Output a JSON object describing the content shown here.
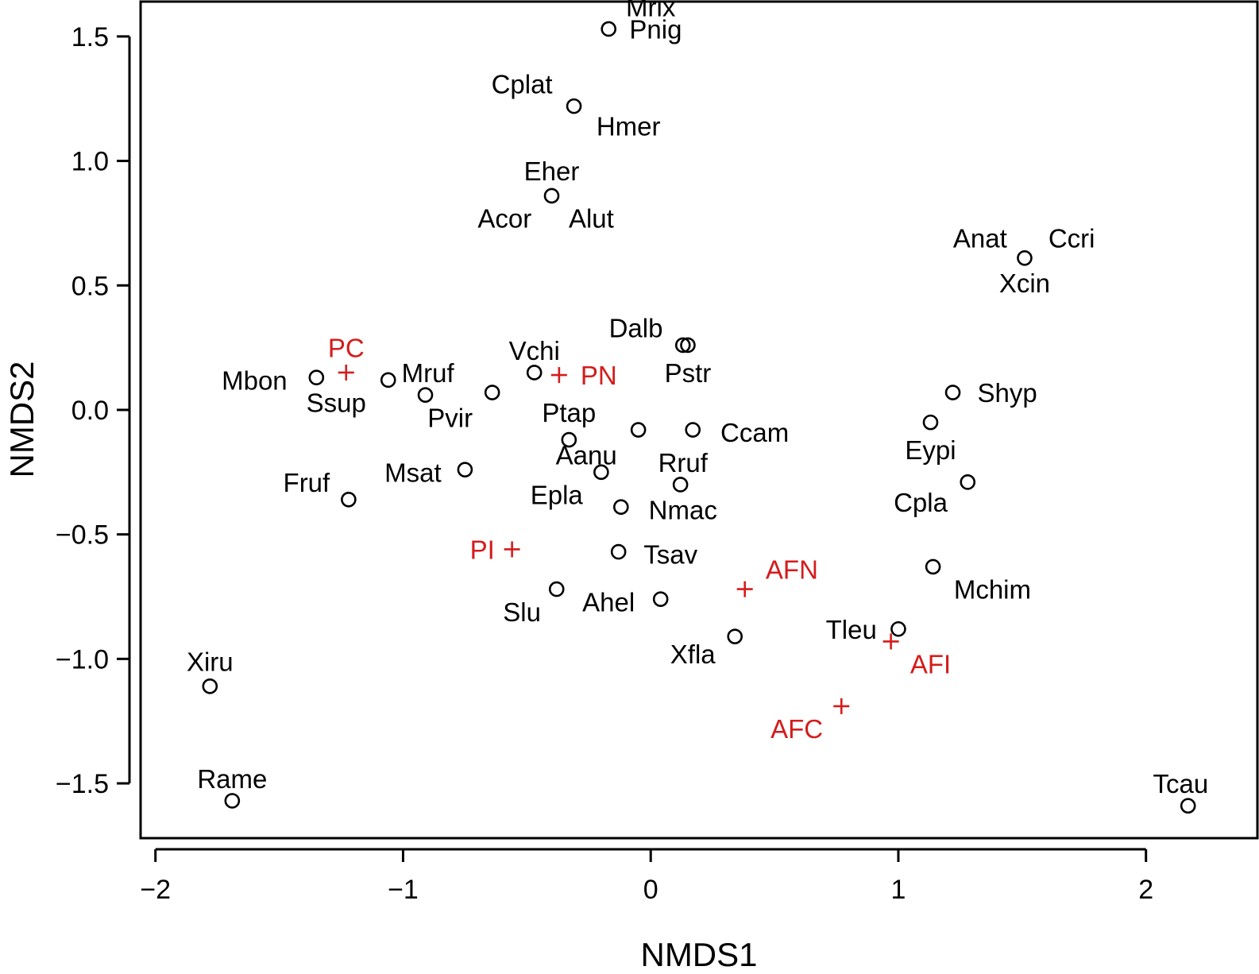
{
  "chart_data": {
    "type": "scatter",
    "xlabel": "NMDS1",
    "ylabel": "NMDS2",
    "xlim": [
      -2.06,
      2.45
    ],
    "ylim": [
      -1.72,
      1.64
    ],
    "xticks": [
      -2,
      -1,
      0,
      1,
      2
    ],
    "yticks": [
      -1.5,
      -1.0,
      -0.5,
      0.0,
      0.5,
      1.0,
      1.5
    ],
    "xtick_labels": [
      "−2",
      "−1",
      "0",
      "1",
      "2"
    ],
    "ytick_labels": [
      "−1.5",
      "−1.0",
      "−0.5",
      "0.0",
      "0.5",
      "1.0",
      "1.5"
    ],
    "grid": false,
    "colors": {
      "species": "#000000",
      "groups": "#d41c1c"
    },
    "species_points": [
      {
        "x": -0.17,
        "y": 1.53
      },
      {
        "x": -0.31,
        "y": 1.22
      },
      {
        "x": -0.4,
        "y": 0.86
      },
      {
        "x": 1.51,
        "y": 0.61
      },
      {
        "x": 0.13,
        "y": 0.26
      },
      {
        "x": 0.15,
        "y": 0.26
      },
      {
        "x": -1.35,
        "y": 0.13
      },
      {
        "x": -1.06,
        "y": 0.12
      },
      {
        "x": -0.91,
        "y": 0.06
      },
      {
        "x": -0.64,
        "y": 0.07
      },
      {
        "x": -0.47,
        "y": 0.15
      },
      {
        "x": 1.22,
        "y": 0.07
      },
      {
        "x": -0.05,
        "y": -0.08
      },
      {
        "x": 0.17,
        "y": -0.08
      },
      {
        "x": -0.33,
        "y": -0.12
      },
      {
        "x": 1.13,
        "y": -0.05
      },
      {
        "x": -0.75,
        "y": -0.24
      },
      {
        "x": -0.2,
        "y": -0.25
      },
      {
        "x": 0.12,
        "y": -0.3
      },
      {
        "x": 1.28,
        "y": -0.29
      },
      {
        "x": -1.22,
        "y": -0.36
      },
      {
        "x": -0.12,
        "y": -0.39
      },
      {
        "x": -0.13,
        "y": -0.57
      },
      {
        "x": 1.14,
        "y": -0.63
      },
      {
        "x": -0.38,
        "y": -0.72
      },
      {
        "x": 0.04,
        "y": -0.76
      },
      {
        "x": 0.34,
        "y": -0.91
      },
      {
        "x": 1.0,
        "y": -0.88
      },
      {
        "x": -1.78,
        "y": -1.11
      },
      {
        "x": -1.69,
        "y": -1.57
      },
      {
        "x": 2.17,
        "y": -1.59
      }
    ],
    "species_labels": [
      {
        "text": "Mrix",
        "x": 0.0,
        "y": 1.62
      },
      {
        "text": "Pnig",
        "x": 0.02,
        "y": 1.53
      },
      {
        "text": "Cplat",
        "x": -0.52,
        "y": 1.31
      },
      {
        "text": "Hmer",
        "x": -0.09,
        "y": 1.14
      },
      {
        "text": "Eher",
        "x": -0.4,
        "y": 0.96
      },
      {
        "text": "Acor",
        "x": -0.59,
        "y": 0.77
      },
      {
        "text": "Alut",
        "x": -0.24,
        "y": 0.77
      },
      {
        "text": "Anat",
        "x": 1.33,
        "y": 0.69
      },
      {
        "text": "Ccri",
        "x": 1.7,
        "y": 0.69
      },
      {
        "text": "Xcin",
        "x": 1.51,
        "y": 0.51
      },
      {
        "text": "Dalb",
        "x": -0.06,
        "y": 0.33
      },
      {
        "text": "Vchi",
        "x": -0.47,
        "y": 0.24
      },
      {
        "text": "Pstr",
        "x": 0.15,
        "y": 0.15
      },
      {
        "text": "Mbon",
        "x": -1.6,
        "y": 0.12
      },
      {
        "text": "Mruf",
        "x": -0.9,
        "y": 0.15
      },
      {
        "text": "Ssup",
        "x": -1.27,
        "y": 0.03
      },
      {
        "text": "Pvir",
        "x": -0.81,
        "y": -0.03
      },
      {
        "text": "Ptap",
        "x": -0.33,
        "y": -0.01
      },
      {
        "text": "Shyp",
        "x": 1.44,
        "y": 0.07
      },
      {
        "text": "Ccam",
        "x": 0.42,
        "y": -0.09
      },
      {
        "text": "Aanu",
        "x": -0.26,
        "y": -0.18
      },
      {
        "text": "Eypi",
        "x": 1.13,
        "y": -0.16
      },
      {
        "text": "Rruf",
        "x": 0.13,
        "y": -0.21
      },
      {
        "text": "Fruf",
        "x": -1.39,
        "y": -0.29
      },
      {
        "text": "Msat",
        "x": -0.96,
        "y": -0.25
      },
      {
        "text": "Epla",
        "x": -0.38,
        "y": -0.34
      },
      {
        "text": "Nmac",
        "x": 0.13,
        "y": -0.4
      },
      {
        "text": "Cpla",
        "x": 1.09,
        "y": -0.37
      },
      {
        "text": "Tsav",
        "x": 0.08,
        "y": -0.58
      },
      {
        "text": "Mchim",
        "x": 1.38,
        "y": -0.72
      },
      {
        "text": "Ahel",
        "x": -0.17,
        "y": -0.77
      },
      {
        "text": "Slu",
        "x": -0.52,
        "y": -0.81
      },
      {
        "text": "Tleu",
        "x": 0.81,
        "y": -0.88
      },
      {
        "text": "Xfla",
        "x": 0.17,
        "y": -0.98
      },
      {
        "text": "Xiru",
        "x": -1.78,
        "y": -1.01
      },
      {
        "text": "Rame",
        "x": -1.69,
        "y": -1.48
      },
      {
        "text": "Tcau",
        "x": 2.14,
        "y": -1.5
      }
    ],
    "group_points": [
      {
        "label": "PC",
        "x": -1.23,
        "y": 0.15,
        "label_x": -1.23,
        "label_y": 0.25
      },
      {
        "label": "PN",
        "x": -0.37,
        "y": 0.14,
        "label_x": -0.21,
        "label_y": 0.14
      },
      {
        "label": "PI",
        "x": -0.56,
        "y": -0.56,
        "label_x": -0.68,
        "label_y": -0.56
      },
      {
        "label": "AFN",
        "x": 0.38,
        "y": -0.72,
        "label_x": 0.57,
        "label_y": -0.64
      },
      {
        "label": "AFI",
        "x": 0.97,
        "y": -0.93,
        "label_x": 1.13,
        "label_y": -1.02
      },
      {
        "label": "AFC",
        "x": 0.77,
        "y": -1.19,
        "label_x": 0.59,
        "label_y": -1.28
      }
    ]
  }
}
